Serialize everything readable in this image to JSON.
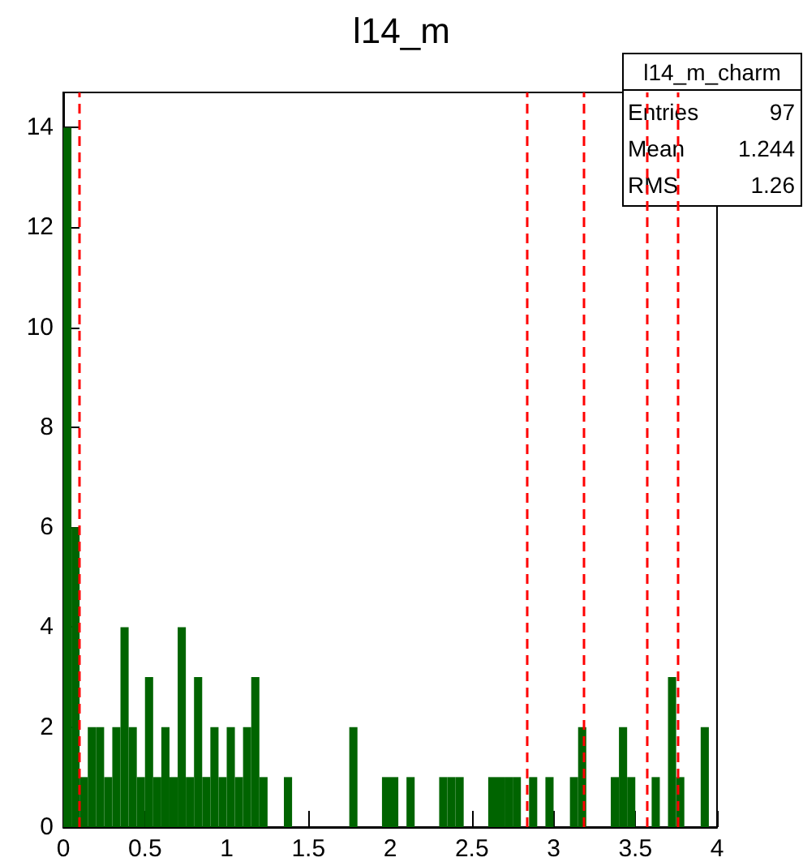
{
  "chart_data": {
    "type": "histogram",
    "title": "l14_m",
    "bins": [
      0,
      0.05,
      0.1,
      0.15,
      0.2,
      0.25,
      0.3,
      0.35,
      0.4,
      0.45,
      0.5,
      0.55,
      0.6,
      0.65,
      0.7,
      0.75,
      0.8,
      0.85,
      0.9,
      0.95,
      1,
      1.05,
      1.1,
      1.15,
      1.2,
      1.25,
      1.3,
      1.35,
      1.4,
      1.45,
      1.5,
      1.55,
      1.6,
      1.65,
      1.7,
      1.75,
      1.8,
      1.85,
      1.9,
      1.95,
      2,
      2.05,
      2.1,
      2.15,
      2.2,
      2.25,
      2.3,
      2.35,
      2.4,
      2.45,
      2.5,
      2.55,
      2.6,
      2.65,
      2.7,
      2.75,
      2.8,
      2.85,
      2.9,
      2.95,
      3,
      3.05,
      3.1,
      3.15,
      3.2,
      3.25,
      3.3,
      3.35,
      3.4,
      3.45,
      3.5,
      3.55,
      3.6,
      3.65,
      3.7,
      3.75,
      3.8,
      3.85,
      3.9,
      3.95,
      4
    ],
    "values": [
      14,
      6,
      1,
      2,
      2,
      1,
      2,
      4,
      2,
      1,
      3,
      1,
      2,
      1,
      4,
      1,
      3,
      1,
      2,
      1,
      2,
      1,
      2,
      3,
      1,
      0,
      0,
      1,
      0,
      0,
      0,
      0,
      0,
      0,
      0,
      2,
      0,
      0,
      0,
      1,
      1,
      0,
      1,
      0,
      0,
      0,
      1,
      1,
      1,
      0,
      0,
      0,
      1,
      1,
      1,
      1,
      0,
      1,
      0,
      1,
      0,
      0,
      1,
      2,
      0,
      0,
      0,
      1,
      2,
      1,
      0,
      0,
      1,
      0,
      3,
      1,
      0,
      0,
      2,
      0
    ],
    "color": "#006400",
    "xlim": [
      0,
      4
    ],
    "xticks": [
      0,
      0.5,
      1,
      1.5,
      2,
      2.5,
      3,
      3.5,
      4
    ],
    "ylim": [
      0,
      14.7
    ],
    "yticks": [
      0,
      2,
      4,
      6,
      8,
      10,
      12,
      14
    ],
    "ref_lines": [
      {
        "axis": "x",
        "value": 0.1,
        "color": "#ff0000",
        "line_style": "dashed"
      },
      {
        "axis": "x",
        "value": 2.84,
        "color": "#ff0000",
        "line_style": "dashed"
      },
      {
        "axis": "x",
        "value": 3.18,
        "color": "#ff0000",
        "line_style": "dashed"
      },
      {
        "axis": "x",
        "value": 3.57,
        "color": "#ff0000",
        "line_style": "dashed"
      },
      {
        "axis": "x",
        "value": 3.76,
        "color": "#ff0000",
        "line_style": "dashed"
      }
    ],
    "annotations": [
      "l14_m_charm",
      "Entries",
      "97",
      "Mean",
      "1.244",
      "RMS",
      "1.26"
    ],
    "grid": false,
    "legend": false
  }
}
